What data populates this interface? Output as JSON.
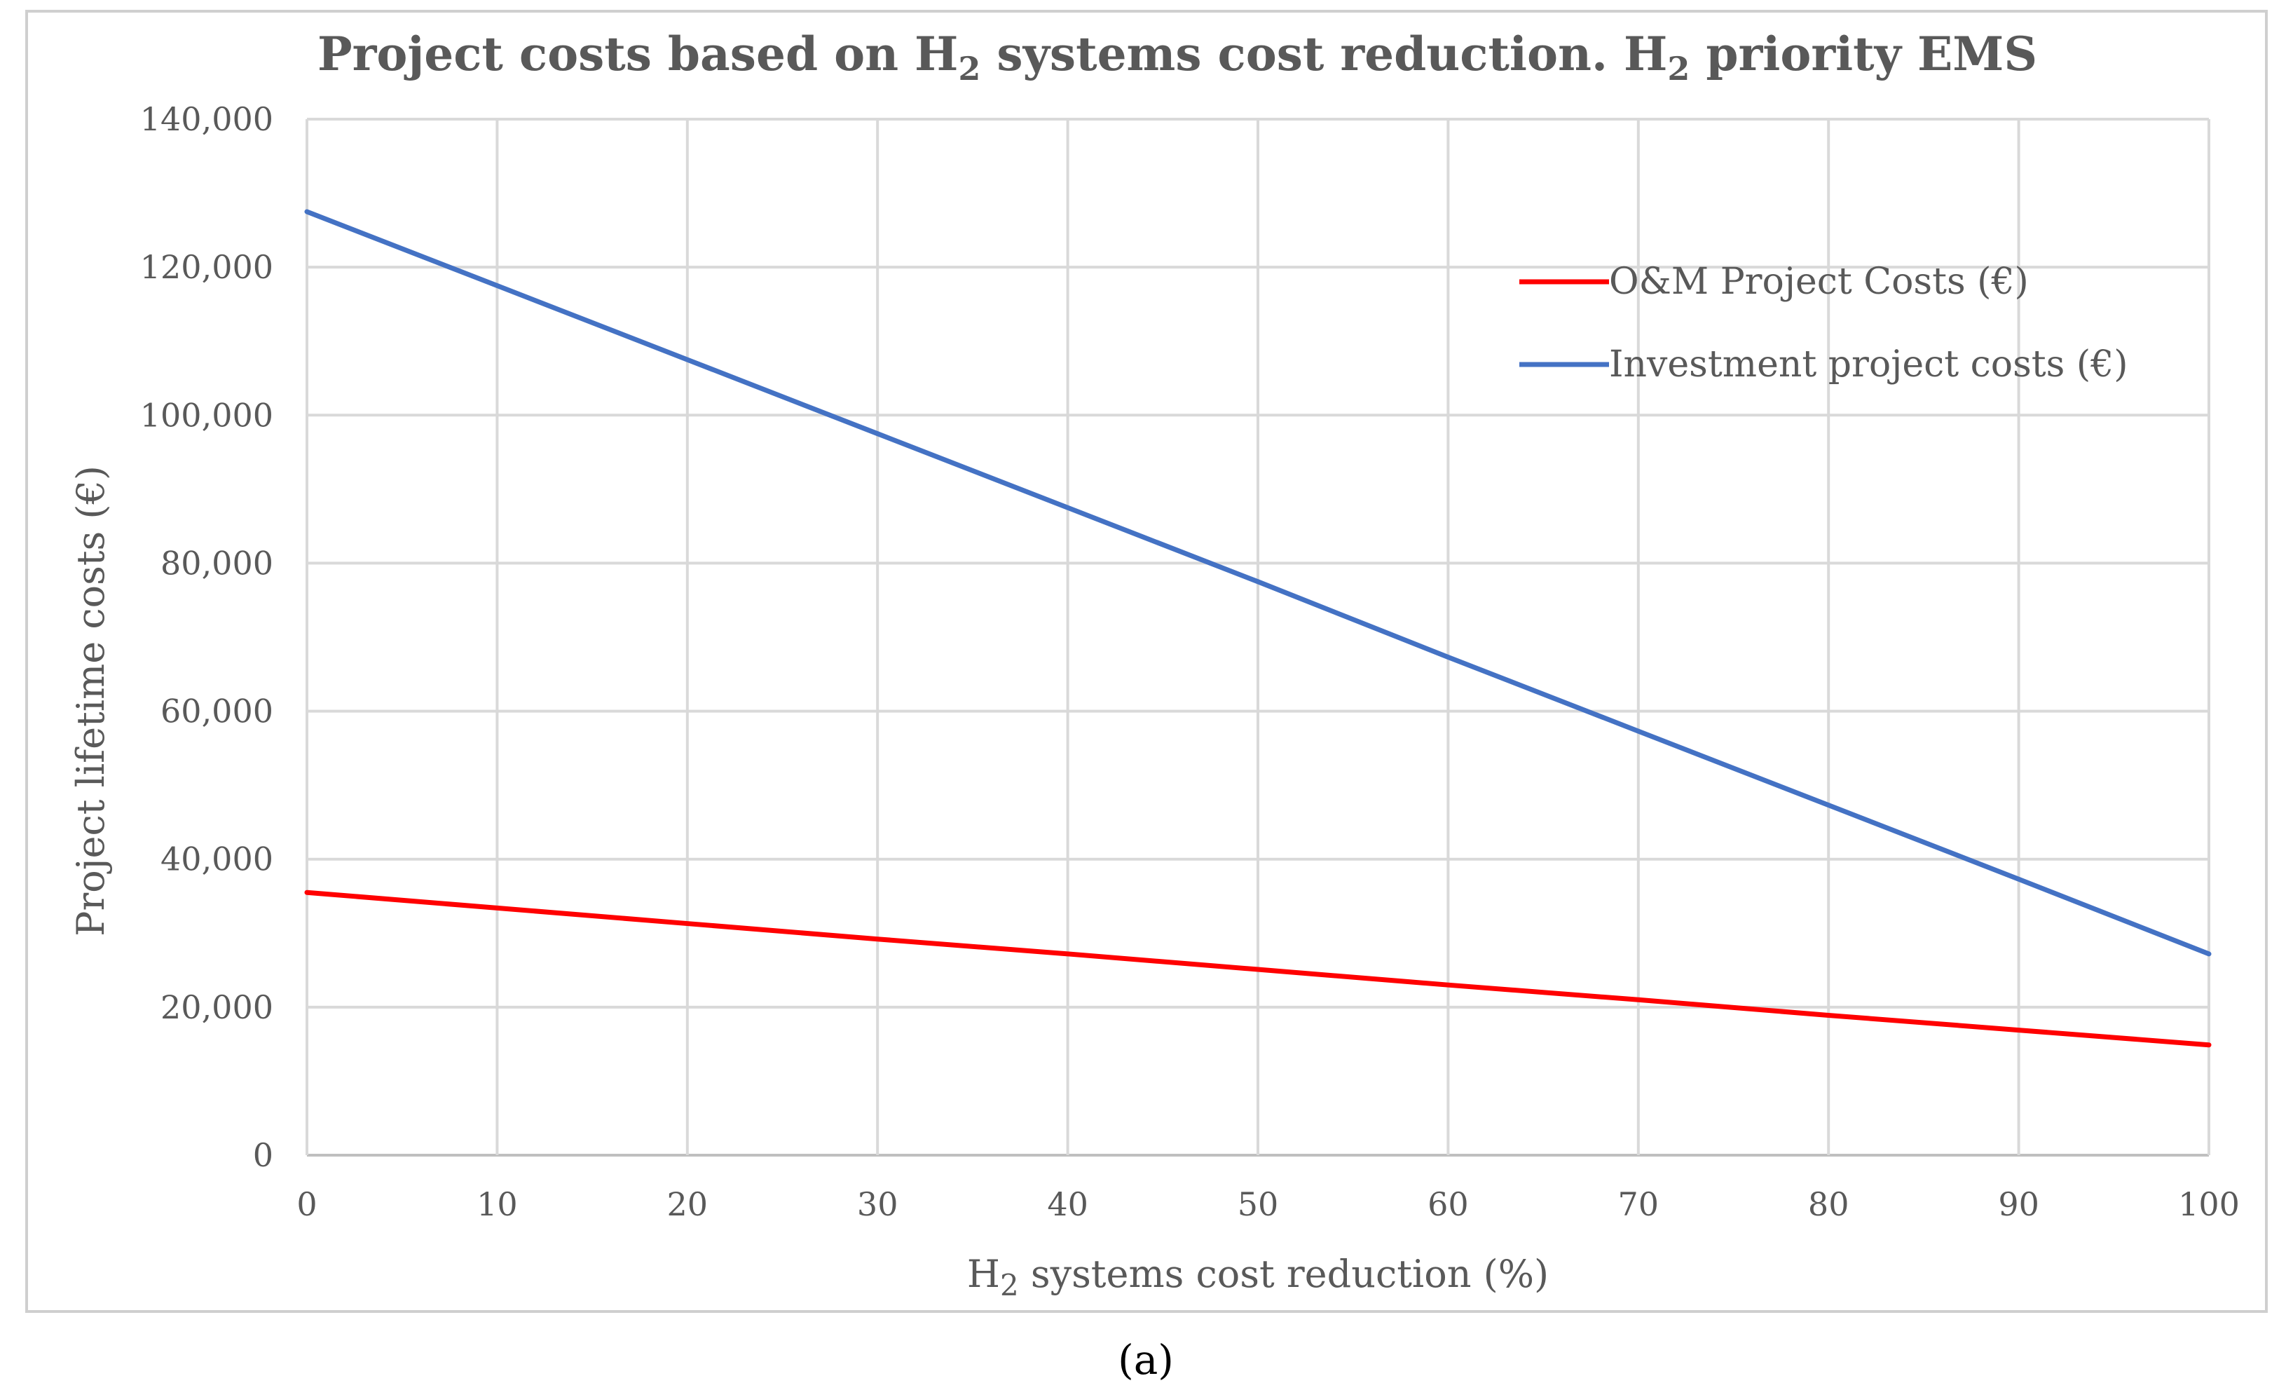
{
  "chart_data": {
    "type": "line",
    "title": {
      "part1": "Project costs based on H",
      "sub1": "2",
      "part2": " systems cost reduction. H",
      "sub2": "2",
      "part3": " priority EMS"
    },
    "xlabel": {
      "part1": "H",
      "sub": "2",
      "part2": " systems cost reduction (%)"
    },
    "ylabel": "Project lifetime costs (€)",
    "xlim": [
      0,
      100
    ],
    "ylim": [
      0,
      140000
    ],
    "x_ticks": [
      0,
      10,
      20,
      30,
      40,
      50,
      60,
      70,
      80,
      90,
      100
    ],
    "x_tick_labels": [
      "0",
      "10",
      "20",
      "30",
      "40",
      "50",
      "60",
      "70",
      "80",
      "90",
      "100"
    ],
    "y_ticks": [
      0,
      20000,
      40000,
      60000,
      80000,
      100000,
      120000,
      140000
    ],
    "y_tick_labels": [
      "0",
      "20,000",
      "40,000",
      "60,000",
      "80,000",
      "100,000",
      "120,000",
      "140,000"
    ],
    "x": [
      0,
      10,
      20,
      30,
      40,
      50,
      60,
      70,
      80,
      90,
      100
    ],
    "series": [
      {
        "name": "O&M Project Costs (€)",
        "color": "#ff0000",
        "values": [
          35500,
          33400,
          31300,
          29200,
          27200,
          25100,
          23000,
          21000,
          18900,
          16900,
          14900
        ]
      },
      {
        "name": "Investment project costs (€)",
        "color": "#4472c4",
        "values": [
          127500,
          117500,
          107500,
          97500,
          87500,
          77500,
          67300,
          57300,
          47300,
          37300,
          27200
        ]
      }
    ],
    "grid": true,
    "legend_position": "top-right",
    "caption": "(a)"
  }
}
